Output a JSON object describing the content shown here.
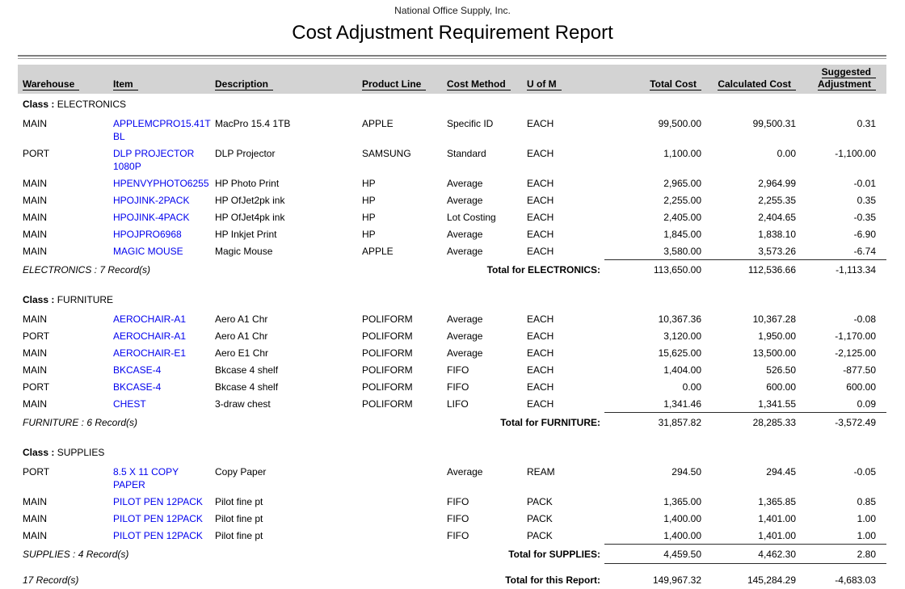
{
  "report": {
    "company": "National Office Supply, Inc.",
    "title": "Cost Adjustment Requirement Report"
  },
  "colors": {
    "link_blue": "#0000ee",
    "header_band_gray": "#d3d3d3",
    "rule_gray": "#7f7f7f"
  },
  "table": {
    "class_prefix": "Class :",
    "headers": {
      "warehouse": "Warehouse",
      "item": "Item",
      "description": "Description",
      "product_line": "Product Line",
      "cost_method": "Cost Method",
      "uom": "U of M",
      "total_cost": "Total Cost",
      "calculated_cost": "Calculated Cost",
      "suggested_line1": "Suggested",
      "suggested_line2": "Adjustment"
    },
    "groups": [
      {
        "name": "ELECTRONICS",
        "rows": [
          {
            "wh": "MAIN",
            "item": "APPLEMCPRO15.41TBL",
            "desc": "MacPro 15.4 1TB",
            "pl": "APPLE",
            "cm": "Specific ID",
            "uom": "EACH",
            "tc": "99,500.00",
            "cc": "99,500.31",
            "adj": "0.31"
          },
          {
            "wh": "PORT",
            "item": "DLP PROJECTOR 1080P",
            "desc": "DLP Projector",
            "pl": "SAMSUNG",
            "cm": "Standard",
            "uom": "EACH",
            "tc": "1,100.00",
            "cc": "0.00",
            "adj": "-1,100.00"
          },
          {
            "wh": "MAIN",
            "item": "HPENVYPHOTO6255",
            "desc": "HP Photo Print",
            "pl": "HP",
            "cm": "Average",
            "uom": "EACH",
            "tc": "2,965.00",
            "cc": "2,964.99",
            "adj": "-0.01"
          },
          {
            "wh": "MAIN",
            "item": "HPOJINK-2PACK",
            "desc": "HP OfJet2pk ink",
            "pl": "HP",
            "cm": "Average",
            "uom": "EACH",
            "tc": "2,255.00",
            "cc": "2,255.35",
            "adj": "0.35"
          },
          {
            "wh": "MAIN",
            "item": "HPOJINK-4PACK",
            "desc": "HP OfJet4pk ink",
            "pl": "HP",
            "cm": "Lot Costing",
            "uom": "EACH",
            "tc": "2,405.00",
            "cc": "2,404.65",
            "adj": "-0.35"
          },
          {
            "wh": "MAIN",
            "item": "HPOJPRO6968",
            "desc": "HP Inkjet Print",
            "pl": "HP",
            "cm": "Average",
            "uom": "EACH",
            "tc": "1,845.00",
            "cc": "1,838.10",
            "adj": "-6.90"
          },
          {
            "wh": "MAIN",
            "item": "MAGIC MOUSE",
            "desc": "Magic Mouse",
            "pl": "APPLE",
            "cm": "Average",
            "uom": "EACH",
            "tc": "3,580.00",
            "cc": "3,573.26",
            "adj": "-6.74"
          }
        ],
        "summary": {
          "records": "ELECTRONICS : 7 Record(s)",
          "label": "Total for ELECTRONICS:",
          "tc": "113,650.00",
          "cc": "112,536.66",
          "adj": "-1,113.34"
        }
      },
      {
        "name": "FURNITURE",
        "rows": [
          {
            "wh": "MAIN",
            "item": "AEROCHAIR-A1",
            "desc": "Aero A1 Chr",
            "pl": "POLIFORM",
            "cm": "Average",
            "uom": "EACH",
            "tc": "10,367.36",
            "cc": "10,367.28",
            "adj": "-0.08"
          },
          {
            "wh": "PORT",
            "item": "AEROCHAIR-A1",
            "desc": "Aero A1 Chr",
            "pl": "POLIFORM",
            "cm": "Average",
            "uom": "EACH",
            "tc": "3,120.00",
            "cc": "1,950.00",
            "adj": "-1,170.00"
          },
          {
            "wh": "MAIN",
            "item": "AEROCHAIR-E1",
            "desc": "Aero E1 Chr",
            "pl": "POLIFORM",
            "cm": "Average",
            "uom": "EACH",
            "tc": "15,625.00",
            "cc": "13,500.00",
            "adj": "-2,125.00"
          },
          {
            "wh": "MAIN",
            "item": "BKCASE-4",
            "desc": "Bkcase 4 shelf",
            "pl": "POLIFORM",
            "cm": "FIFO",
            "uom": "EACH",
            "tc": "1,404.00",
            "cc": "526.50",
            "adj": "-877.50"
          },
          {
            "wh": "PORT",
            "item": "BKCASE-4",
            "desc": "Bkcase 4 shelf",
            "pl": "POLIFORM",
            "cm": "FIFO",
            "uom": "EACH",
            "tc": "0.00",
            "cc": "600.00",
            "adj": "600.00"
          },
          {
            "wh": "MAIN",
            "item": "CHEST",
            "desc": "3-draw chest",
            "pl": "POLIFORM",
            "cm": "LIFO",
            "uom": "EACH",
            "tc": "1,341.46",
            "cc": "1,341.55",
            "adj": "0.09"
          }
        ],
        "summary": {
          "records": "FURNITURE : 6 Record(s)",
          "label": "Total for FURNITURE:",
          "tc": "31,857.82",
          "cc": "28,285.33",
          "adj": "-3,572.49"
        }
      },
      {
        "name": "SUPPLIES",
        "rows": [
          {
            "wh": "PORT",
            "item": "8.5 X 11 COPY PAPER",
            "desc": "Copy Paper",
            "pl": "",
            "cm": "Average",
            "uom": "REAM",
            "tc": "294.50",
            "cc": "294.45",
            "adj": "-0.05"
          },
          {
            "wh": "MAIN",
            "item": "PILOT PEN 12PACK",
            "desc": "Pilot fine pt",
            "pl": "",
            "cm": "FIFO",
            "uom": "PACK",
            "tc": "1,365.00",
            "cc": "1,365.85",
            "adj": "0.85"
          },
          {
            "wh": "MAIN",
            "item": "PILOT PEN 12PACK",
            "desc": "Pilot fine pt",
            "pl": "",
            "cm": "FIFO",
            "uom": "PACK",
            "tc": "1,400.00",
            "cc": "1,401.00",
            "adj": "1.00"
          },
          {
            "wh": "MAIN",
            "item": "PILOT PEN 12PACK",
            "desc": "Pilot fine pt",
            "pl": "",
            "cm": "FIFO",
            "uom": "PACK",
            "tc": "1,400.00",
            "cc": "1,401.00",
            "adj": "1.00"
          }
        ],
        "summary": {
          "records": "SUPPLIES : 4 Record(s)",
          "label": "Total for SUPPLIES:",
          "tc": "4,459.50",
          "cc": "4,462.30",
          "adj": "2.80"
        }
      }
    ],
    "grand_total": {
      "records": "17 Record(s)",
      "label": "Total for this Report:",
      "tc": "149,967.32",
      "cc": "145,284.29",
      "adj": "-4,683.03"
    }
  }
}
